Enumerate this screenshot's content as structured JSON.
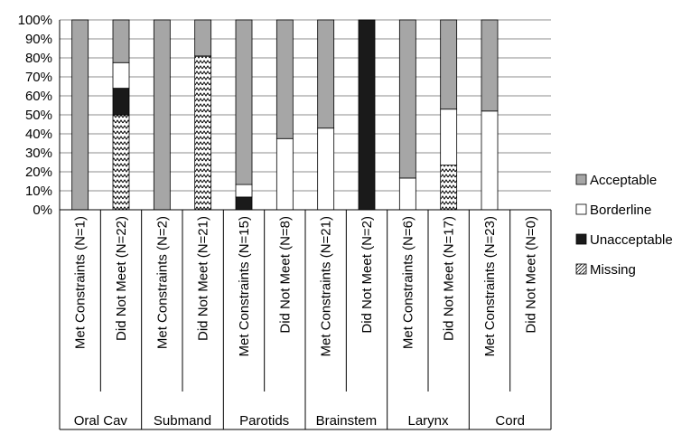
{
  "chart_data": {
    "type": "bar",
    "stacked": true,
    "percent": true,
    "ylim": [
      0,
      100
    ],
    "y_ticks": [
      "0%",
      "10%",
      "20%",
      "30%",
      "40%",
      "50%",
      "60%",
      "70%",
      "80%",
      "90%",
      "100%"
    ],
    "grid": true,
    "legend_position": "right",
    "colors": {
      "Acceptable": "#a6a6a6",
      "Borderline": "#ffffff",
      "Unacceptable": "#1a1a1a",
      "Missing": "pattern-zigzag"
    },
    "groups": [
      {
        "label": "Oral Cav",
        "categories": [
          "Met Constraints (N=1)",
          "Did Not Meet (N=22)"
        ]
      },
      {
        "label": "Submand",
        "categories": [
          "Met Constraints (N=2)",
          "Did Not Meet (N=21)"
        ]
      },
      {
        "label": "Parotids",
        "categories": [
          "Met Constraints (N=15)",
          "Did Not Meet (N=8)"
        ]
      },
      {
        "label": "Brainstem",
        "categories": [
          "Met Constraints (N=21)",
          "Did Not Meet (N=2)"
        ]
      },
      {
        "label": "Larynx",
        "categories": [
          "Met Constraints (N=6)",
          "Did Not Meet (N=17)"
        ]
      },
      {
        "label": "Cord",
        "categories": [
          "Met Constraints (N=23)",
          "Did Not Meet (N=0)"
        ]
      }
    ],
    "series": [
      {
        "name": "Missing",
        "values": [
          0,
          50,
          0,
          81,
          0,
          0,
          0,
          0,
          0,
          23.5,
          0,
          0
        ]
      },
      {
        "name": "Unacceptable",
        "values": [
          0,
          14,
          0,
          0,
          6.7,
          0,
          0,
          100,
          0,
          0,
          0,
          0
        ]
      },
      {
        "name": "Borderline",
        "values": [
          0,
          13.5,
          0,
          0,
          6.6,
          37.5,
          43,
          0,
          16.7,
          29.5,
          52,
          0
        ]
      },
      {
        "name": "Acceptable",
        "values": [
          100,
          22.5,
          100,
          19,
          86.7,
          62.5,
          57,
          0,
          83.3,
          47,
          48,
          0
        ]
      }
    ],
    "legend": [
      "Acceptable",
      "Borderline",
      "Unacceptable",
      "Missing"
    ]
  }
}
